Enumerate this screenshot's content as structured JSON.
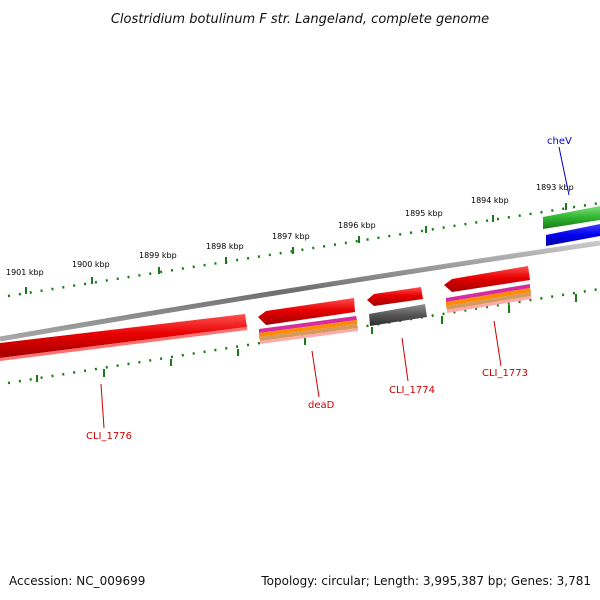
{
  "title": "Clostridium botulinum F str. Langeland, complete genome",
  "scale_ticks": [
    "1901 kbp",
    "1900 kbp",
    "1899 kbp",
    "1898 kbp",
    "1897 kbp",
    "1896 kbp",
    "1895 kbp",
    "1894 kbp",
    "1893 kbp"
  ],
  "genes": [
    {
      "name": "cheV",
      "color": "#0000cc"
    },
    {
      "name": "CLI_1776",
      "color": "#cc0000"
    },
    {
      "name": "deaD",
      "color": "#cc0000"
    },
    {
      "name": "CLI_1774",
      "color": "#cc0000"
    },
    {
      "name": "CLI_1773",
      "color": "#cc0000"
    }
  ],
  "colors": {
    "backbone": "#808080",
    "ticks": "#1a7a1a",
    "gene_red": "#ee1111",
    "gene_green": "#33bb33",
    "gene_blue": "#0000ee",
    "gene_grey": "#555555",
    "label_red": "#cc0000",
    "label_blue": "#0000cc"
  },
  "footer": {
    "accession": "Accession: NC_009699",
    "summary": "Topology: circular; Length: 3,995,387 bp; Genes: 3,781"
  }
}
